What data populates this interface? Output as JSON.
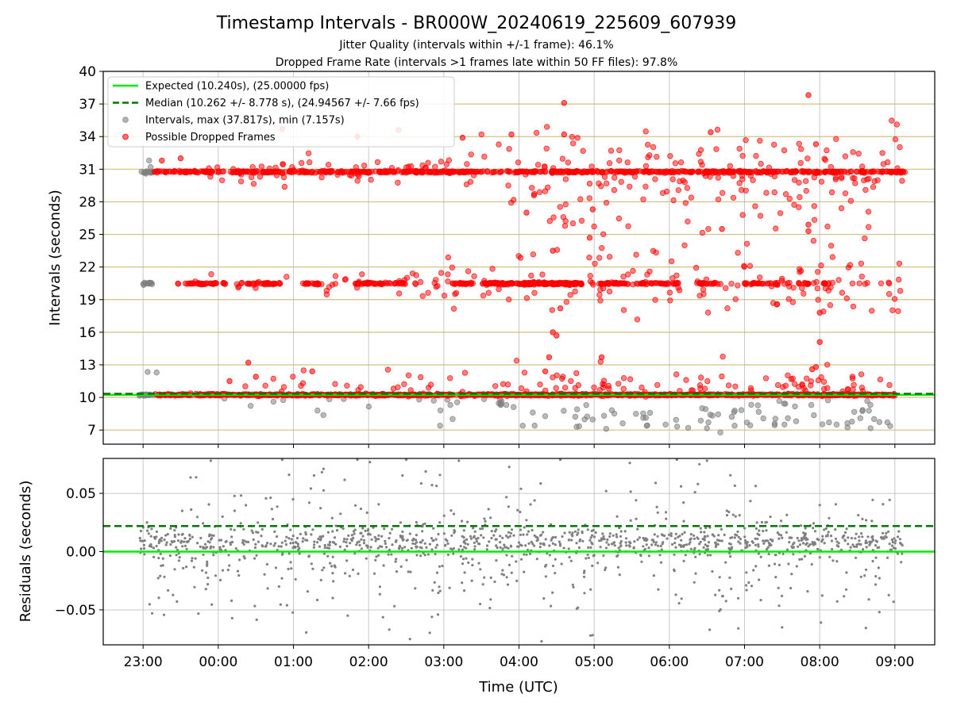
{
  "figure": {
    "title": "Timestamp Intervals - BR000W_20240619_225609_607939",
    "subtitle_1": "Jitter Quality (intervals within +/-1 frame): 46.1%",
    "subtitle_2": "Dropped Frame Rate (intervals >1 frames late within 50 FF files): 97.8%",
    "xlabel": "Time (UTC)",
    "x_ticks": [
      "23:00",
      "00:00",
      "01:00",
      "02:00",
      "03:00",
      "04:00",
      "05:00",
      "06:00",
      "07:00",
      "08:00",
      "09:00"
    ]
  },
  "colors": {
    "expected": "#00ee00",
    "median": "#007700",
    "intervals": "#808080",
    "dropped": "#ff0000",
    "hgrid_top": "#d4c080",
    "grid": "#b0b0b0"
  },
  "chart_data": [
    {
      "type": "scatter",
      "ylabel": "Intervals (seconds)",
      "x_range_hours": [
        -0.53,
        10.53
      ],
      "x_axis_note": "hours relative to 2024-06-19 23:00 UTC",
      "ylim": [
        5.7,
        40
      ],
      "yticks": [
        7,
        10,
        13,
        16,
        19,
        22,
        25,
        28,
        31,
        34,
        37,
        40
      ],
      "legend": {
        "position": "upper-left",
        "entries": [
          "Expected (10.240s), (25.00000 fps)",
          "Median (10.262 +/- 8.778 s), (24.94567 +/- 7.66 fps)",
          "Intervals, max (37.817s), min (7.157s)",
          "Possible Dropped Frames"
        ]
      },
      "expected_line": 10.24,
      "median_line": 10.262,
      "bands": [
        {
          "center": 10.25,
          "x_start": 0.15,
          "x_end": 10.0,
          "density": "continuous"
        },
        {
          "center": 20.48,
          "x_start": 0.0,
          "x_end": 10.0,
          "density": "clustered"
        },
        {
          "center": 30.76,
          "x_start": 0.15,
          "x_end": 10.15,
          "density": "continuous"
        }
      ],
      "series_grey_max": 37.817,
      "series_grey_min": 7.157
    },
    {
      "type": "scatter",
      "ylabel": "Residuals (seconds)",
      "ylim": [
        -0.08,
        0.08
      ],
      "yticks": [
        -0.05,
        0.0,
        0.05
      ],
      "ytick_labels": [
        "−0.05",
        "0.00",
        "0.05"
      ],
      "expected_line": 0.0,
      "median_line": 0.022
    }
  ]
}
